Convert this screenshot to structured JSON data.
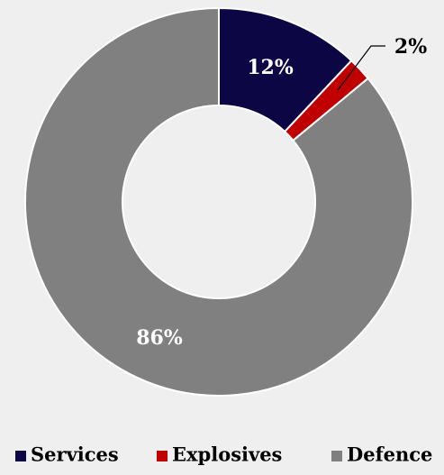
{
  "chart_data": {
    "type": "pie",
    "variant": "donut",
    "categories": [
      "Services",
      "Explosives",
      "Defence"
    ],
    "values": [
      12,
      2,
      86
    ],
    "data_labels": [
      "12%",
      "2%",
      "86%"
    ],
    "colors": [
      "#0d0645",
      "#c00000",
      "#808080"
    ],
    "title": "",
    "legend_position": "bottom"
  }
}
